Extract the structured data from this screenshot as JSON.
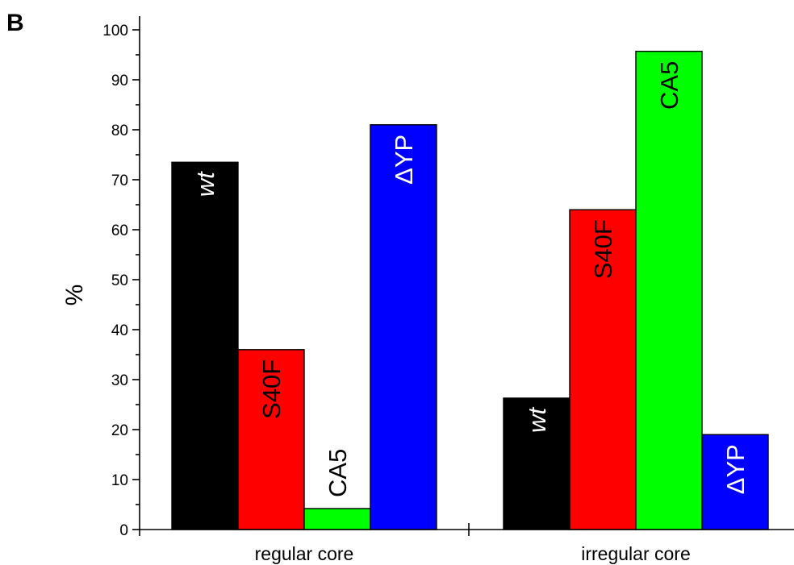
{
  "panel_label": "B",
  "chart_data": {
    "type": "bar",
    "categories": [
      "regular core",
      "irregular core"
    ],
    "series": [
      {
        "name": "wt",
        "values": [
          73.5,
          26.3
        ],
        "color": "#000000",
        "label_color": "#ffffff",
        "label_italic": true
      },
      {
        "name": "S40F",
        "values": [
          36,
          64
        ],
        "color": "#ff0000",
        "label_color": "#000000",
        "label_italic": false
      },
      {
        "name": "CA5",
        "values": [
          4.2,
          95.7
        ],
        "color": "#00ff00",
        "label_color": "#000000",
        "label_italic": false
      },
      {
        "name": "ΔYP",
        "values": [
          81,
          19
        ],
        "color": "#0000ff",
        "label_color": "#ffffff",
        "label_italic": false
      }
    ],
    "ylabel": "%",
    "ylim": [
      0,
      100
    ],
    "yticks": [
      0,
      10,
      20,
      30,
      40,
      50,
      60,
      70,
      80,
      90,
      100
    ],
    "grid": false,
    "legend": "none"
  }
}
